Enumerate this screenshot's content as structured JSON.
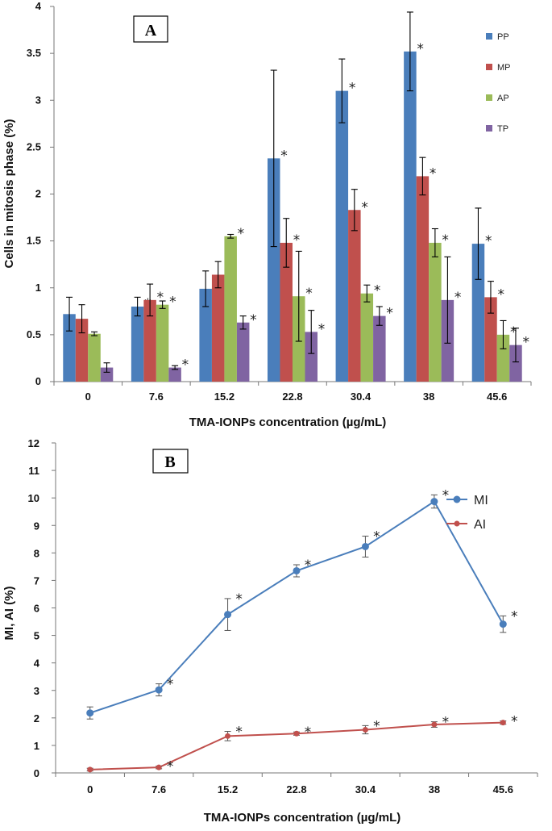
{
  "chart_data": [
    {
      "type": "bar",
      "panel_label": "A",
      "title": "",
      "xlabel": "TMA-IONPs concentration (µg/mL)",
      "ylabel": "Cells in mitosis phase (%)",
      "ylim": [
        0,
        4
      ],
      "yticks": [
        "0",
        "0.5",
        "1",
        "1.5",
        "2",
        "2.5",
        "3",
        "3.5",
        "4"
      ],
      "grid": false,
      "legend_position": "top-right",
      "categories": [
        "0",
        "7.6",
        "15.2",
        "22.8",
        "30.4",
        "38",
        "45.6"
      ],
      "series": [
        {
          "name": "PP",
          "color": "#4a7ebb",
          "values": [
            0.72,
            0.8,
            0.99,
            2.38,
            3.1,
            3.52,
            1.47
          ],
          "errors": [
            0.18,
            0.1,
            0.19,
            0.94,
            0.34,
            0.42,
            0.38
          ],
          "sig": [
            false,
            true,
            true,
            true,
            true,
            true,
            true
          ]
        },
        {
          "name": "MP",
          "color": "#c0504d",
          "values": [
            0.67,
            0.87,
            1.14,
            1.48,
            1.83,
            2.19,
            0.9
          ],
          "errors": [
            0.15,
            0.17,
            0.14,
            0.26,
            0.22,
            0.2,
            0.17
          ],
          "sig": [
            false,
            true,
            true,
            true,
            true,
            true,
            true
          ]
        },
        {
          "name": "AP",
          "color": "#9bbb59",
          "values": [
            0.51,
            0.82,
            1.55,
            0.91,
            0.94,
            1.48,
            0.5
          ],
          "errors": [
            0.02,
            0.04,
            0.02,
            0.48,
            0.09,
            0.15,
            0.15
          ],
          "sig": [
            false,
            true,
            true,
            true,
            true,
            true,
            true
          ]
        },
        {
          "name": "TP",
          "color": "#8064a2",
          "values": [
            0.15,
            0.15,
            0.63,
            0.53,
            0.7,
            0.87,
            0.39
          ],
          "errors": [
            0.05,
            0.02,
            0.07,
            0.23,
            0.1,
            0.46,
            0.18
          ],
          "sig": [
            false,
            true,
            true,
            true,
            true,
            true,
            true
          ]
        }
      ],
      "sig_marker": "*"
    },
    {
      "type": "line",
      "panel_label": "B",
      "title": "",
      "xlabel": "TMA-IONPs concentration (µg/mL)",
      "ylabel": "MI, AI (%)",
      "ylim": [
        0,
        12
      ],
      "yticks": [
        "0",
        "1",
        "2",
        "3",
        "4",
        "5",
        "6",
        "7",
        "8",
        "9",
        "10",
        "11",
        "12"
      ],
      "grid": false,
      "legend_position": "top-right",
      "categories": [
        "0",
        "7.6",
        "15.2",
        "22.8",
        "30.4",
        "38",
        "45.6"
      ],
      "series": [
        {
          "name": "MI",
          "color": "#4a7ebb",
          "values": [
            2.18,
            3.02,
            5.76,
            7.35,
            8.23,
            9.87,
            5.41
          ],
          "errors": [
            0.22,
            0.22,
            0.58,
            0.22,
            0.38,
            0.24,
            0.3
          ],
          "sig": [
            false,
            true,
            true,
            true,
            true,
            true,
            true
          ]
        },
        {
          "name": "AI",
          "color": "#c0504d",
          "values": [
            0.12,
            0.2,
            1.34,
            1.43,
            1.57,
            1.76,
            1.83
          ],
          "errors": [
            0.05,
            0.05,
            0.17,
            0.06,
            0.15,
            0.1,
            0.06
          ],
          "sig": [
            false,
            true,
            true,
            true,
            true,
            true,
            true
          ]
        }
      ],
      "sig_marker": "*"
    }
  ]
}
